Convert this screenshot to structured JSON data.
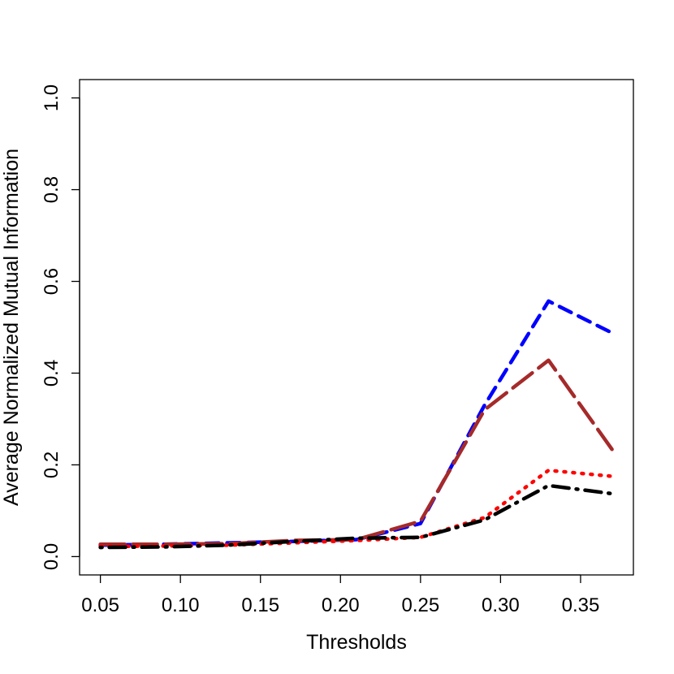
{
  "chart_data": {
    "type": "line",
    "title": "",
    "xlabel": "Thresholds",
    "ylabel": "Average Normalized Mutual Information",
    "xlim": [
      0.037,
      0.383
    ],
    "ylim": [
      -0.04,
      1.04
    ],
    "xticks": [
      "0.05",
      "0.10",
      "0.15",
      "0.20",
      "0.25",
      "0.30",
      "0.35"
    ],
    "yticks": [
      "0.0",
      "0.2",
      "0.4",
      "0.6",
      "0.8",
      "1.0"
    ],
    "grid": false,
    "legend": "none",
    "x": [
      0.05,
      0.09,
      0.13,
      0.17,
      0.21,
      0.25,
      0.29,
      0.33,
      0.37
    ],
    "series": [
      {
        "color": "#0000ff",
        "style": "dashed",
        "values": [
          0.025,
          0.027,
          0.03,
          0.033,
          0.037,
          0.072,
          0.33,
          0.557,
          0.487
        ]
      },
      {
        "color": "#a52a2a",
        "style": "longdash",
        "values": [
          0.027,
          0.027,
          0.028,
          0.035,
          0.037,
          0.077,
          0.32,
          0.428,
          0.232
        ]
      },
      {
        "color": "#ff0000",
        "style": "dotted",
        "values": [
          0.022,
          0.023,
          0.025,
          0.03,
          0.035,
          0.042,
          0.085,
          0.188,
          0.175
        ]
      },
      {
        "color": "#000000",
        "style": "dotdash",
        "values": [
          0.02,
          0.021,
          0.025,
          0.033,
          0.04,
          0.042,
          0.08,
          0.155,
          0.137
        ]
      }
    ]
  }
}
